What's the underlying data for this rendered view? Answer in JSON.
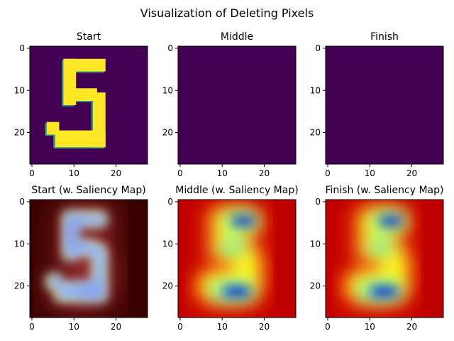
{
  "figure_title": "Visualization of Deleting Pixels",
  "chart_data": [
    {
      "type": "heatmap",
      "panel": "start",
      "title": "Start",
      "image_size": [
        28,
        28
      ],
      "xticks": [
        0,
        10,
        20
      ],
      "yticks": [
        0,
        10,
        20
      ],
      "xlim": [
        -0.5,
        27.5
      ],
      "ylim": [
        27.5,
        -0.5
      ],
      "colormap": "viridis",
      "content": "handwritten digit 5 (yellow strokes on purple)"
    },
    {
      "type": "heatmap",
      "panel": "middle",
      "title": "Middle",
      "image_size": [
        28,
        28
      ],
      "xticks": [
        0,
        10,
        20
      ],
      "yticks": [
        0,
        10,
        20
      ],
      "xlim": [
        -0.5,
        27.5
      ],
      "ylim": [
        27.5,
        -0.5
      ],
      "colormap": "viridis",
      "content": "all pixels deleted (uniform dark purple)"
    },
    {
      "type": "heatmap",
      "panel": "finish",
      "title": "Finish",
      "image_size": [
        28,
        28
      ],
      "xticks": [
        0,
        10,
        20
      ],
      "yticks": [
        0,
        10,
        20
      ],
      "xlim": [
        -0.5,
        27.5
      ],
      "ylim": [
        27.5,
        -0.5
      ],
      "colormap": "viridis",
      "content": "all pixels deleted (uniform dark purple)"
    },
    {
      "type": "heatmap",
      "panel": "start-saliency",
      "title": "Start (w. Saliency Map)",
      "image_size": [
        28,
        28
      ],
      "xticks": [
        0,
        10,
        20
      ],
      "yticks": [
        0,
        10,
        20
      ],
      "xlim": [
        -0.5,
        27.5
      ],
      "ylim": [
        27.5,
        -0.5
      ],
      "colormap": "jet overlay",
      "content": "digit 5 with saliency overlay on dark red background"
    },
    {
      "type": "heatmap",
      "panel": "middle-saliency",
      "title": "Middle (w. Saliency Map)",
      "image_size": [
        28,
        28
      ],
      "xticks": [
        0,
        10,
        20
      ],
      "yticks": [
        0,
        10,
        20
      ],
      "xlim": [
        -0.5,
        27.5
      ],
      "ylim": [
        27.5,
        -0.5
      ],
      "colormap": "jet",
      "content": "saliency map shaped like digit 5 on red background"
    },
    {
      "type": "heatmap",
      "panel": "finish-saliency",
      "title": "Finish (w. Saliency Map)",
      "image_size": [
        28,
        28
      ],
      "xticks": [
        0,
        10,
        20
      ],
      "yticks": [
        0,
        10,
        20
      ],
      "xlim": [
        -0.5,
        27.5
      ],
      "ylim": [
        27.5,
        -0.5
      ],
      "colormap": "jet",
      "content": "saliency map shaped like digit 5 on red background"
    }
  ],
  "colors": {
    "viridis_low": "#440154",
    "viridis_high": "#fde725",
    "viridis_mid": "#21918c",
    "saliency_bg": "#c00000",
    "saliency_dark_bg": "#3a0000"
  }
}
